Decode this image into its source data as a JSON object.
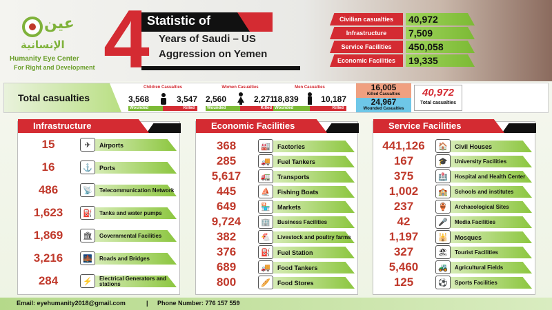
{
  "org": {
    "arabic_top": "عين",
    "arabic_sub": "الإنسانية",
    "name": "Humanity Eye Center",
    "tagline": "For Right and Development"
  },
  "header": {
    "big_number": "4",
    "title_1": "Statistic of",
    "title_2": "Years of Saudi – US",
    "title_3": "Aggression on Yemen",
    "stats": [
      {
        "label": "Civilian casualties",
        "value": "40,972"
      },
      {
        "label": "Infrastructure",
        "value": "7,509"
      },
      {
        "label": "Service Facilities",
        "value": "450,058"
      },
      {
        "label": "Economic Facilities",
        "value": "19,335"
      }
    ]
  },
  "casualties": {
    "title": "Total casualties",
    "groups": [
      {
        "title": "Children Casualties",
        "wounded": "3,568",
        "killed": "3,547",
        "wounded_label": "Wounded",
        "killed_label": "Killed"
      },
      {
        "title": "Women Casualties",
        "wounded": "2,560",
        "killed": "2,271",
        "wounded_label": "Wounded",
        "killed_label": "Killed"
      },
      {
        "title": "Men Casualties",
        "wounded": "18,839",
        "killed": "10,187",
        "wounded_label": "Wounded",
        "killed_label": "Killed"
      }
    ],
    "killed_total": "16,005",
    "killed_label": "Killed Casualties",
    "wounded_total": "24,967",
    "wounded_label": "Wounded Casualties",
    "grand_total": "40,972",
    "grand_label": "Total casualties"
  },
  "panels": [
    {
      "title": "Infrastructure",
      "rows": [
        {
          "value": "15",
          "label": "Airports",
          "icon": "airplane-icon",
          "glyph": "✈"
        },
        {
          "value": "16",
          "label": "Ports",
          "icon": "ship-icon",
          "glyph": "⚓"
        },
        {
          "value": "486",
          "label": "Telecommunication Network",
          "icon": "antenna-icon",
          "glyph": "📡"
        },
        {
          "value": "1,623",
          "label": "Tanks and water pumps",
          "icon": "water-tank-icon",
          "glyph": "⛽"
        },
        {
          "value": "1,869",
          "label": "Governmental Facilities",
          "icon": "government-building-icon",
          "glyph": "🏛"
        },
        {
          "value": "3,216",
          "label": "Roads and Bridges",
          "icon": "bridge-icon",
          "glyph": "🌉"
        },
        {
          "value": "284",
          "label": "Electrical Generators and stations",
          "icon": "generator-icon",
          "glyph": "⚡"
        }
      ]
    },
    {
      "title": "Economic Facilities",
      "rows": [
        {
          "value": "368",
          "label": "Factories",
          "icon": "factory-icon",
          "glyph": "🏭"
        },
        {
          "value": "285",
          "label": "Fuel Tankers",
          "icon": "fuel-tanker-icon",
          "glyph": "🚚"
        },
        {
          "value": "5,617",
          "label": "Transports",
          "icon": "truck-icon",
          "glyph": "🚛"
        },
        {
          "value": "445",
          "label": "Fishing Boats",
          "icon": "boat-icon",
          "glyph": "⛵"
        },
        {
          "value": "649",
          "label": "Markets",
          "icon": "market-icon",
          "glyph": "🏪"
        },
        {
          "value": "9,724",
          "label": "Business Facilities",
          "icon": "business-building-icon",
          "glyph": "🏢"
        },
        {
          "value": "382",
          "label": "Livestock and poultry farms",
          "icon": "chicken-icon",
          "glyph": "🐔"
        },
        {
          "value": "376",
          "label": "Fuel Station",
          "icon": "fuel-station-icon",
          "glyph": "⛽"
        },
        {
          "value": "689",
          "label": "Food Tankers",
          "icon": "food-truck-icon",
          "glyph": "🚚"
        },
        {
          "value": "800",
          "label": "Food Stores",
          "icon": "food-store-icon",
          "glyph": "🥖"
        }
      ]
    },
    {
      "title": "Service Facilities",
      "rows": [
        {
          "value": "441,126",
          "label": "Civil Houses",
          "icon": "house-icon",
          "glyph": "🏠"
        },
        {
          "value": "167",
          "label": "University Facilities",
          "icon": "graduation-cap-icon",
          "glyph": "🎓"
        },
        {
          "value": "375",
          "label": "Hospital and Health Center",
          "icon": "hospital-icon",
          "glyph": "🏥"
        },
        {
          "value": "1,002",
          "label": "Schools and institutes",
          "icon": "school-icon",
          "glyph": "🏫"
        },
        {
          "value": "237",
          "label": "Archaeological Sites",
          "icon": "archaeology-icon",
          "glyph": "🏺"
        },
        {
          "value": "42",
          "label": "Media Facilities",
          "icon": "microphone-icon",
          "glyph": "🎤"
        },
        {
          "value": "1,197",
          "label": "Mosques",
          "icon": "mosque-icon",
          "glyph": "🕌"
        },
        {
          "value": "327",
          "label": "Tourist Facilities",
          "icon": "tourism-icon",
          "glyph": "🏖"
        },
        {
          "value": "5,460",
          "label": "Agricultural Fields",
          "icon": "tractor-icon",
          "glyph": "🚜"
        },
        {
          "value": "125",
          "label": "Sports Facilities",
          "icon": "football-icon",
          "glyph": "⚽"
        }
      ]
    }
  ],
  "footer": {
    "email": "Email: eyehumanity2018@gmail.com",
    "separator": "|",
    "phone": "Phone Number:   776 157 559"
  },
  "colors": {
    "accent_red": "#d42b32",
    "accent_green": "#8cc63f",
    "black": "#111111"
  }
}
